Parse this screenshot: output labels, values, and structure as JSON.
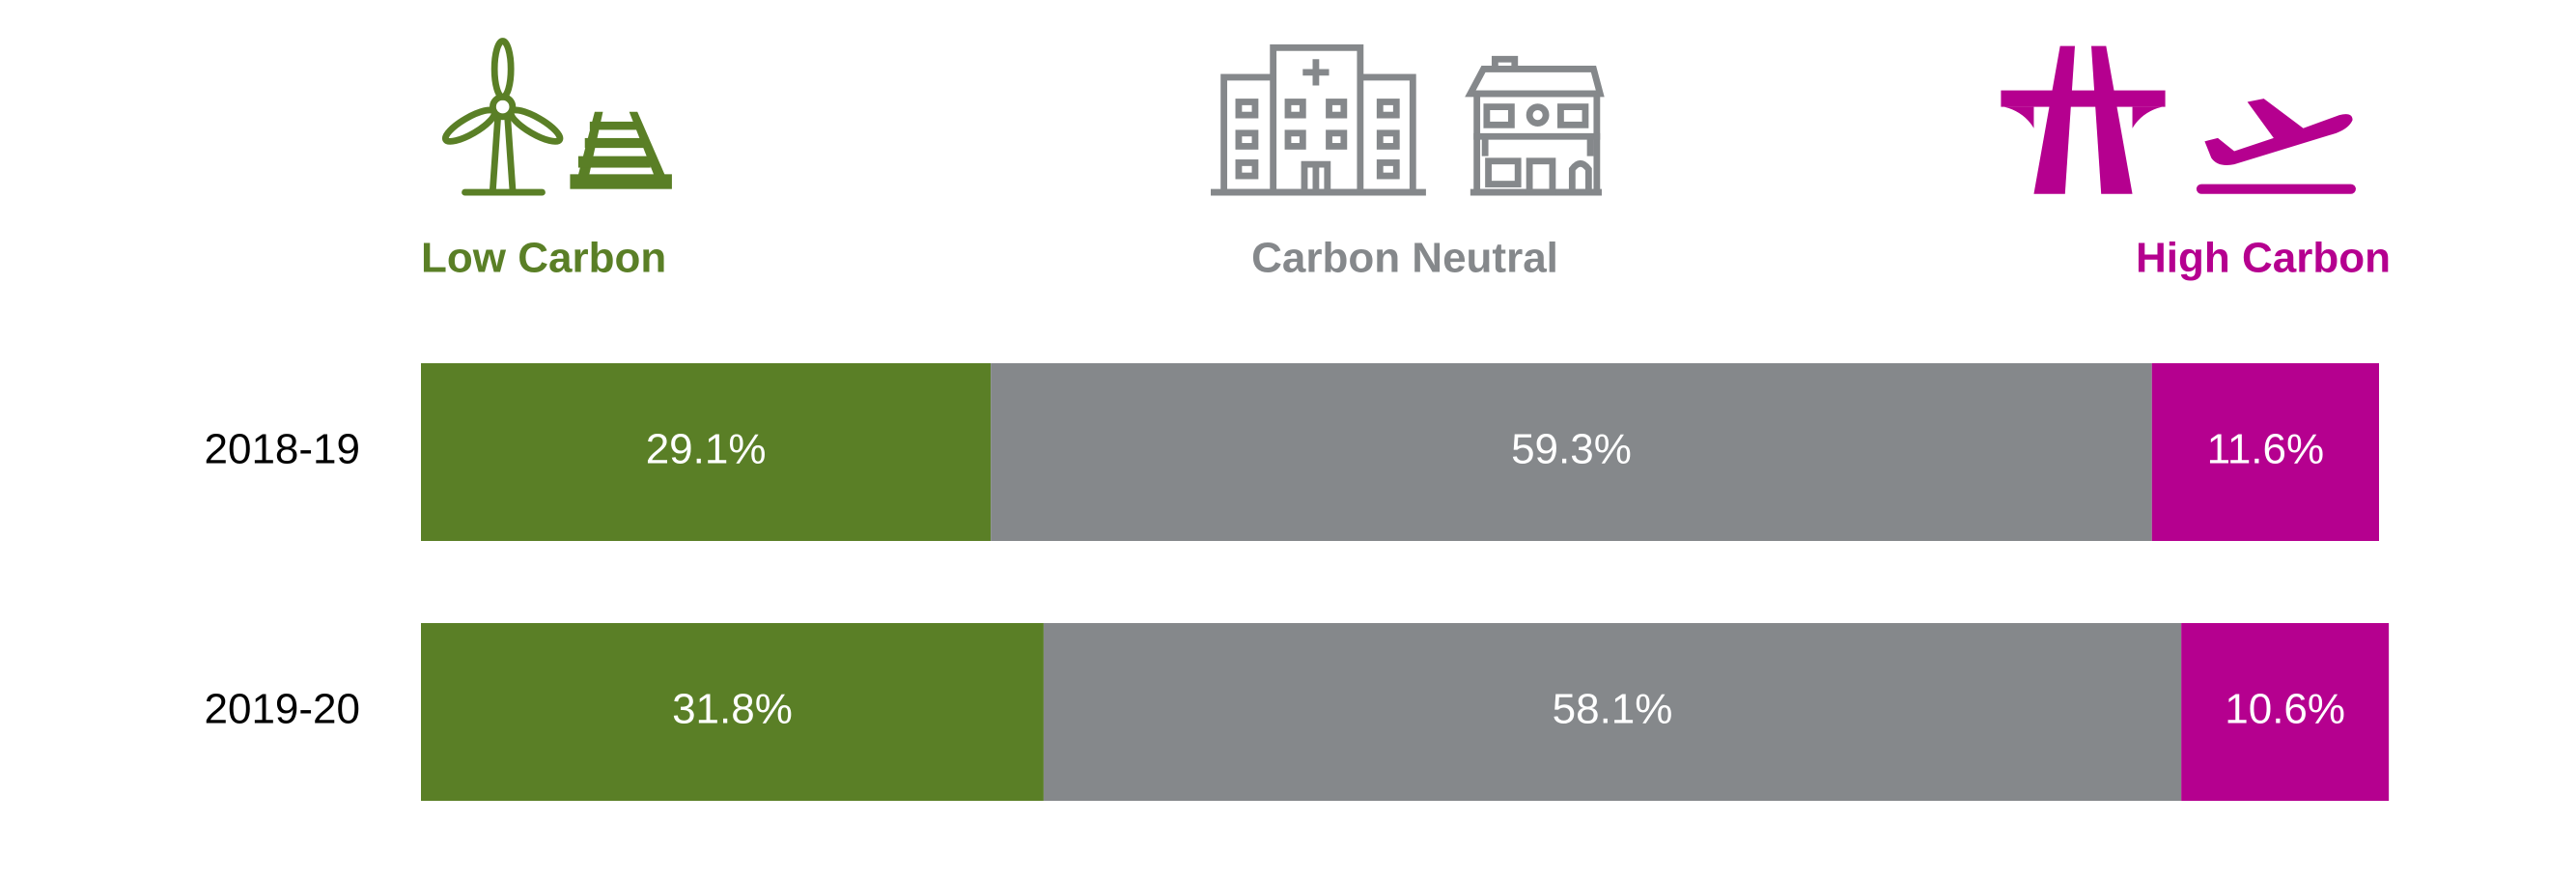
{
  "chart_data": {
    "type": "bar",
    "orientation": "horizontal",
    "stacked": true,
    "categories": [
      "2018-19",
      "2019-20"
    ],
    "series": [
      {
        "name": "Low Carbon",
        "color": "#5a7f26",
        "values": [
          29.1,
          31.8
        ],
        "value_labels": [
          "29.1%",
          "31.8%"
        ]
      },
      {
        "name": "Carbon Neutral",
        "color": "#85888b",
        "values": [
          59.3,
          58.1
        ],
        "value_labels": [
          "59.3%",
          "58.1%"
        ]
      },
      {
        "name": "High Carbon",
        "color": "#b5008f",
        "values": [
          11.6,
          10.6
        ],
        "value_labels": [
          "11.6%",
          "10.6%"
        ]
      }
    ],
    "legend": "top"
  }
}
